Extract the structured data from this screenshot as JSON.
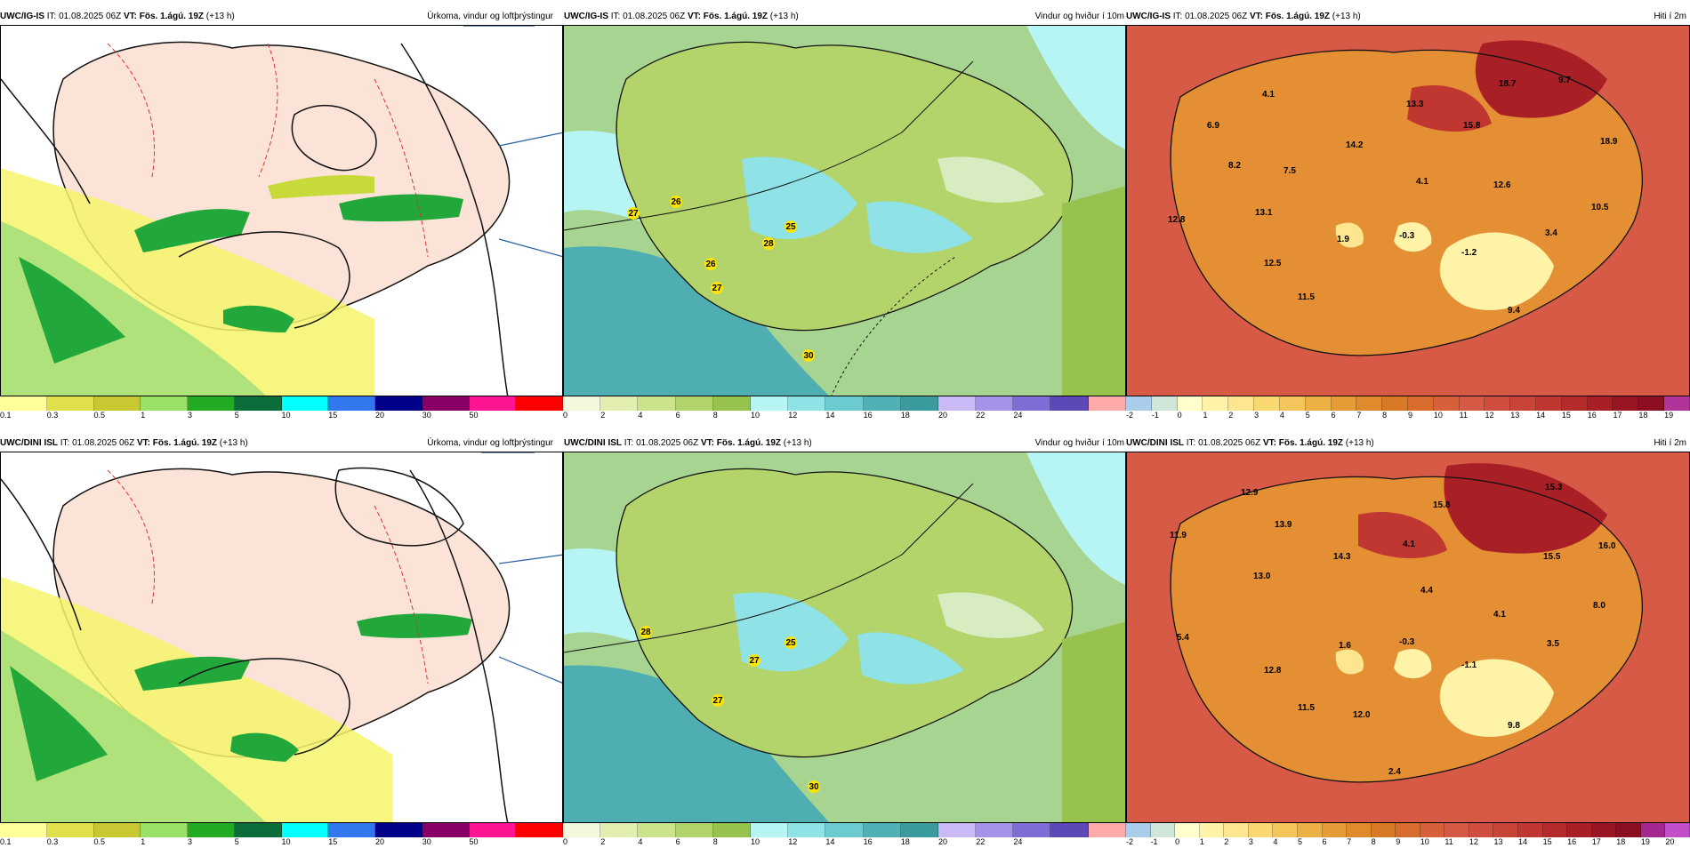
{
  "rows": [
    {
      "header_model": "UWC/IG-IS",
      "header_it": "IT: 01.08.2025 06Z",
      "header_vt": "VT: Fös. 1.ágú. 19Z",
      "header_lead": "(+13 h)",
      "panels": [
        {
          "title": "Úrkoma, vindur og loftþrýstingur",
          "field": "precip"
        },
        {
          "title": "Vindur og hviður í 10m",
          "field": "wind",
          "labels": [
            "27",
            "26",
            "28",
            "25",
            "26",
            "27",
            "30"
          ]
        },
        {
          "title": "Hiti í 2m",
          "field": "temp",
          "labels": [
            "4.1",
            "18.7",
            "9.7",
            "6.9",
            "13.3",
            "15.8",
            "14.2",
            "18.9",
            "8.2",
            "7.5",
            "4.1",
            "12.6",
            "10.5",
            "12.8",
            "13.1",
            "1.9",
            "-0.3",
            "3.4",
            "-1.2",
            "12.5",
            "11.5",
            "9.4"
          ]
        }
      ]
    },
    {
      "header_model": "UWC/DINI ISL",
      "header_it": "IT: 01.08.2025 06Z",
      "header_vt": "VT: Fös. 1.ágú. 19Z",
      "header_lead": "(+13 h)",
      "panels": [
        {
          "title": "Úrkoma, vindur og loftþrýstingur",
          "field": "precip"
        },
        {
          "title": "Vindur og hviður í 10m",
          "field": "wind",
          "labels": [
            "28",
            "25",
            "27",
            "27",
            "30"
          ]
        },
        {
          "title": "Hiti í 2m",
          "field": "temp",
          "labels": [
            "12.9",
            "15.3",
            "11.9",
            "13.9",
            "15.8",
            "4.1",
            "14.3",
            "16.0",
            "13.0",
            "15.5",
            "4.4",
            "8.0",
            "4.1",
            "5.4",
            "1.6",
            "-0.3",
            "3.5",
            "-1.1",
            "12.8",
            "11.5",
            "12.0",
            "9.8",
            "2.4"
          ]
        }
      ]
    }
  ],
  "colorbars": {
    "precip": {
      "ticks": [
        "0.1",
        "0.3",
        "0.5",
        "1",
        "3",
        "5",
        "10",
        "15",
        "20",
        "30",
        "50"
      ],
      "colors": [
        "#ffff99",
        "#e0e04a",
        "#c8c832",
        "#99e066",
        "#22aa22",
        "#0b6e3a",
        "#00ffff",
        "#3377ee",
        "#000088",
        "#880066",
        "#ff1493",
        "#ff0000"
      ]
    },
    "wind": {
      "ticks": [
        "0",
        "2",
        "4",
        "6",
        "8",
        "10",
        "12",
        "14",
        "16",
        "18",
        "20",
        "22",
        "24"
      ],
      "colors": [
        "#f5f8dc",
        "#e2efb0",
        "#cce38c",
        "#b2d46a",
        "#98c24e",
        "#b7f4f4",
        "#8fe3e6",
        "#6ccbd0",
        "#4fb1b5",
        "#3a9a9e",
        "#c9b9f5",
        "#a493e8",
        "#7f6dd6",
        "#5b49b8",
        "#ffaaaa"
      ]
    },
    "temp_top": {
      "ticks": [
        "-2",
        "-1",
        "0",
        "1",
        "2",
        "3",
        "4",
        "5",
        "6",
        "7",
        "8",
        "9",
        "10",
        "11",
        "12",
        "13",
        "14",
        "15",
        "16",
        "17",
        "18",
        "19"
      ],
      "colors": [
        "#a9cdea",
        "#cfe6d8",
        "#ffffcc",
        "#fff3a8",
        "#fde68f",
        "#f9d872",
        "#f3c55a",
        "#ecb045",
        "#e59b36",
        "#df8a2c",
        "#d87a25",
        "#d76c2c",
        "#d5603a",
        "#d55a45",
        "#cf4e3f",
        "#c84338",
        "#c03630",
        "#b52a2a",
        "#a81f26",
        "#981623",
        "#8a0f22",
        "#b0349a"
      ]
    },
    "temp_bottom": {
      "ticks": [
        "-2",
        "-1",
        "0",
        "1",
        "2",
        "3",
        "4",
        "5",
        "6",
        "7",
        "8",
        "9",
        "10",
        "11",
        "12",
        "13",
        "14",
        "15",
        "16",
        "17",
        "18",
        "19",
        "20"
      ],
      "colors": [
        "#a9cdea",
        "#cfe6d8",
        "#ffffcc",
        "#fff3a8",
        "#fde68f",
        "#f9d872",
        "#f3c55a",
        "#ecb045",
        "#e59b36",
        "#df8a2c",
        "#d87a25",
        "#d76c2c",
        "#d5603a",
        "#d55a45",
        "#cf4e3f",
        "#c84338",
        "#c03630",
        "#b52a2a",
        "#a81f26",
        "#981623",
        "#8a0f22",
        "#a2288f",
        "#c14fc9"
      ]
    }
  }
}
